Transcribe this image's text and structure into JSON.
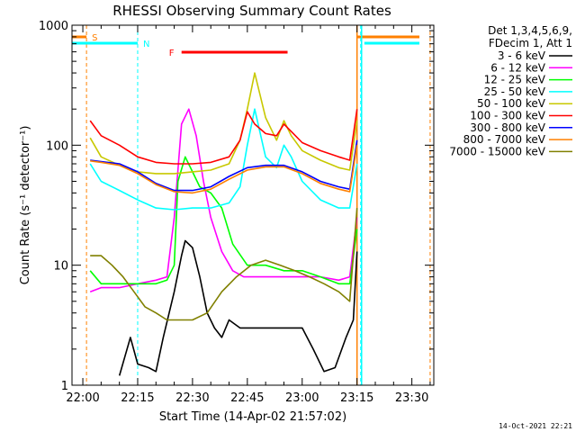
{
  "chart_data": {
    "type": "line",
    "title": "RHESSI Observing Summary Count Rates",
    "ylabel": "Count Rate (s⁻¹ detector⁻¹)",
    "xlabel": "Start Time (14-Apr-02 21:57:02)",
    "y_scale": "log",
    "ylim": [
      1,
      1000
    ],
    "xlim": [
      "21:57:02",
      "23:36:00"
    ],
    "x_ticks": [
      "22:00",
      "22:15",
      "22:30",
      "22:45",
      "23:00",
      "23:15",
      "23:30"
    ],
    "y_ticks": [
      "1",
      "10",
      "100",
      "1000"
    ],
    "footer": "14-Oct-2021 22:21",
    "legend_header": [
      "Det 1,3,4,5,6,9,",
      "FDecim 1, Att 1"
    ],
    "legend_position": "right",
    "annotations": {
      "saa": {
        "label": "S",
        "start": "22:01",
        "end": "23:35",
        "color": "#ff8000"
      },
      "night": {
        "label": "N",
        "start": "22:15",
        "end": "23:16",
        "color": "#00ffff"
      },
      "flare": {
        "label": "F",
        "start": "22:27",
        "end": "22:56",
        "color": "#ff0000"
      }
    },
    "series": [
      {
        "name": "3 - 6 keV",
        "color": "#000000",
        "x": [
          "22:10",
          "22:13",
          "22:15",
          "22:18",
          "22:20",
          "22:22",
          "22:25",
          "22:27",
          "22:28",
          "22:30",
          "22:32",
          "22:34",
          "22:36",
          "22:38",
          "22:40",
          "22:43",
          "22:46",
          "22:50",
          "22:55",
          "23:00",
          "23:03",
          "23:06",
          "23:09",
          "23:12",
          "23:14",
          "23:15"
        ],
        "y": [
          1.2,
          2.5,
          1.5,
          1.4,
          1.3,
          2.5,
          6,
          12,
          16,
          14,
          8,
          4,
          3,
          2.5,
          3.5,
          3,
          3,
          3,
          3,
          3,
          2,
          1.3,
          1.4,
          2.5,
          3.5,
          13
        ]
      },
      {
        "name": "6 - 12 keV",
        "color": "#ff00ff",
        "x": [
          "22:02",
          "22:05",
          "22:10",
          "22:15",
          "22:20",
          "22:23",
          "22:25",
          "22:27",
          "22:29",
          "22:31",
          "22:33",
          "22:35",
          "22:38",
          "22:41",
          "22:44",
          "22:47",
          "22:50",
          "22:55",
          "23:00",
          "23:05",
          "23:10",
          "23:13",
          "23:15"
        ],
        "y": [
          6,
          6.5,
          6.5,
          7,
          7.5,
          8,
          25,
          150,
          200,
          120,
          50,
          25,
          13,
          9,
          8,
          8,
          8,
          8,
          8,
          8,
          7.5,
          8,
          25
        ]
      },
      {
        "name": "12 - 25 keV",
        "color": "#00ff00",
        "x": [
          "22:02",
          "22:05",
          "22:10",
          "22:15",
          "22:20",
          "22:23",
          "22:25",
          "22:26",
          "22:28",
          "22:30",
          "22:32",
          "22:35",
          "22:38",
          "22:41",
          "22:45",
          "22:48",
          "22:50",
          "22:55",
          "23:00",
          "23:05",
          "23:10",
          "23:13",
          "23:15"
        ],
        "y": [
          9,
          7,
          7,
          7,
          7,
          7.5,
          10,
          50,
          80,
          60,
          45,
          40,
          30,
          15,
          10,
          10,
          10,
          9,
          9,
          8,
          7,
          7,
          20
        ]
      },
      {
        "name": "25 - 50 keV",
        "color": "#00ffff",
        "x": [
          "22:02",
          "22:05",
          "22:10",
          "22:15",
          "22:20",
          "22:25",
          "22:30",
          "22:35",
          "22:40",
          "22:43",
          "22:45",
          "22:47",
          "22:50",
          "22:53",
          "22:55",
          "22:57",
          "23:00",
          "23:05",
          "23:10",
          "23:13",
          "23:15"
        ],
        "y": [
          70,
          50,
          42,
          35,
          30,
          29,
          30,
          30,
          33,
          45,
          100,
          200,
          80,
          65,
          100,
          80,
          50,
          35,
          30,
          30,
          70
        ]
      },
      {
        "name": "50 - 100 keV",
        "color": "#c8c800",
        "x": [
          "22:02",
          "22:05",
          "22:10",
          "22:15",
          "22:20",
          "22:25",
          "22:30",
          "22:35",
          "22:40",
          "22:43",
          "22:45",
          "22:47",
          "22:50",
          "22:53",
          "22:55",
          "22:57",
          "23:00",
          "23:05",
          "23:10",
          "23:13",
          "23:15"
        ],
        "y": [
          115,
          80,
          68,
          60,
          58,
          58,
          60,
          62,
          70,
          110,
          200,
          400,
          170,
          110,
          160,
          120,
          90,
          75,
          65,
          62,
          160
        ]
      },
      {
        "name": "100 - 300 keV",
        "color": "#ff0000",
        "x": [
          "22:02",
          "22:05",
          "22:10",
          "22:15",
          "22:20",
          "22:25",
          "22:30",
          "22:35",
          "22:40",
          "22:43",
          "22:45",
          "22:47",
          "22:50",
          "22:53",
          "22:55",
          "22:57",
          "23:00",
          "23:05",
          "23:10",
          "23:13",
          "23:15"
        ],
        "y": [
          160,
          120,
          100,
          80,
          72,
          70,
          70,
          72,
          80,
          110,
          190,
          150,
          125,
          120,
          150,
          130,
          105,
          90,
          80,
          75,
          200
        ]
      },
      {
        "name": "300 - 800 keV",
        "color": "#0000ff",
        "x": [
          "22:02",
          "22:05",
          "22:10",
          "22:15",
          "22:20",
          "22:25",
          "22:30",
          "22:35",
          "22:40",
          "22:45",
          "22:50",
          "22:55",
          "23:00",
          "23:05",
          "23:10",
          "23:13",
          "23:15"
        ],
        "y": [
          75,
          73,
          70,
          60,
          48,
          42,
          42,
          45,
          55,
          65,
          68,
          68,
          60,
          50,
          45,
          43,
          110
        ]
      },
      {
        "name": "800 - 7000 keV",
        "color": "#ff8000",
        "x": [
          "22:02",
          "22:05",
          "22:10",
          "22:15",
          "22:20",
          "22:25",
          "22:30",
          "22:35",
          "22:40",
          "22:45",
          "22:50",
          "22:55",
          "23:00",
          "23:05",
          "23:10",
          "23:13",
          "23:15"
        ],
        "y": [
          74,
          72,
          68,
          58,
          47,
          41,
          40,
          43,
          52,
          62,
          66,
          66,
          58,
          48,
          43,
          41,
          100
        ]
      },
      {
        "name": "7000 - 15000 keV",
        "color": "#808000",
        "x": [
          "22:02",
          "22:05",
          "22:08",
          "22:11",
          "22:14",
          "22:17",
          "22:20",
          "22:23",
          "22:26",
          "22:30",
          "22:34",
          "22:38",
          "22:42",
          "22:46",
          "22:50",
          "22:54",
          "22:58",
          "23:02",
          "23:06",
          "23:10",
          "23:13",
          "23:15"
        ],
        "y": [
          12,
          12,
          10,
          8,
          6,
          4.5,
          4,
          3.5,
          3.5,
          3.5,
          4,
          6,
          8,
          10,
          11,
          10,
          9,
          8,
          7,
          6,
          5,
          30
        ]
      }
    ]
  }
}
